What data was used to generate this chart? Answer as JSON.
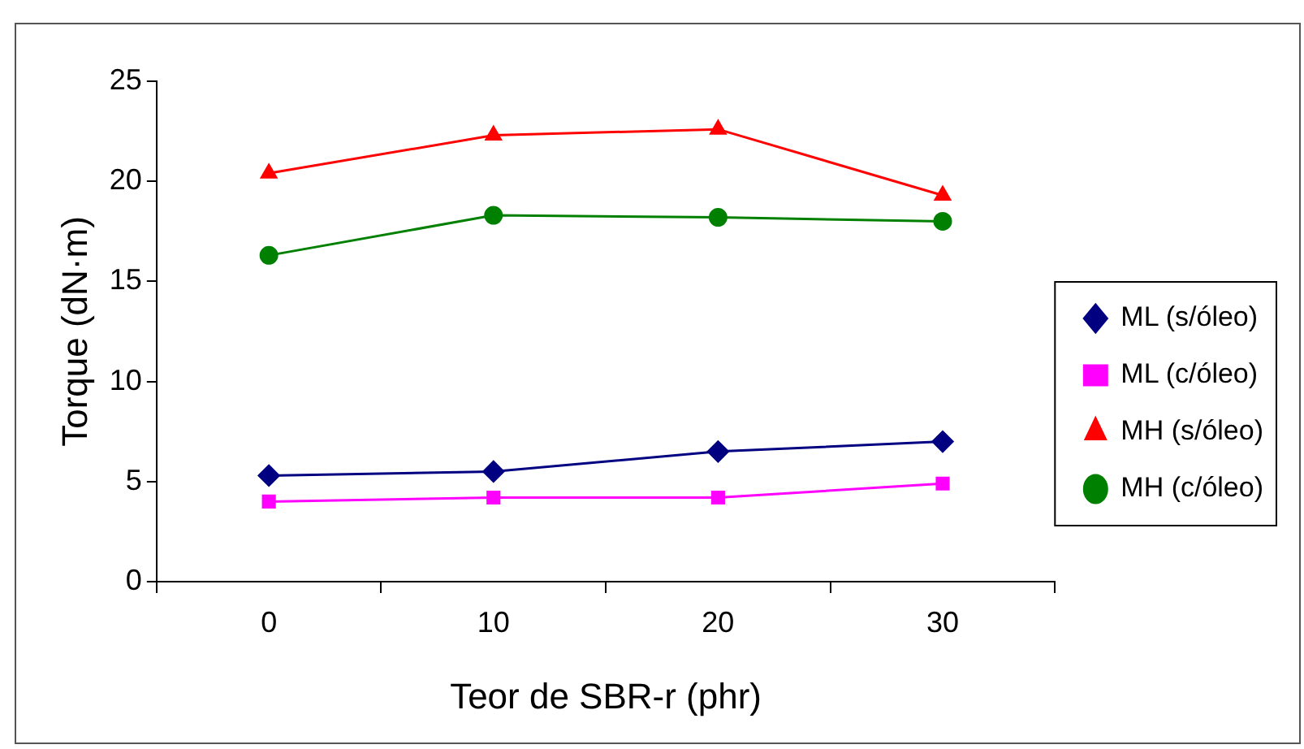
{
  "chart_data": {
    "type": "line",
    "xlabel": "Teor de SBR-r (phr)",
    "ylabel": "Torque (dN·m)",
    "categories": [
      "0",
      "10",
      "20",
      "30"
    ],
    "ylim": [
      0,
      25
    ],
    "yticks": [
      0,
      5,
      10,
      15,
      20,
      25
    ],
    "grid": false,
    "legend": "right",
    "series": [
      {
        "name": "ML (s/óleo)",
        "color": "#000080",
        "marker": "diamond",
        "values": [
          5.3,
          5.5,
          6.5,
          7.0
        ]
      },
      {
        "name": "ML (c/óleo)",
        "color": "#ff00ff",
        "marker": "square",
        "values": [
          4.0,
          4.2,
          4.2,
          4.9
        ]
      },
      {
        "name": "MH (s/óleo)",
        "color": "#ff0000",
        "marker": "triangle",
        "values": [
          20.4,
          22.3,
          22.6,
          19.3
        ]
      },
      {
        "name": "MH (c/óleo)",
        "color": "#008000",
        "marker": "circle",
        "values": [
          16.3,
          18.3,
          18.2,
          18.0
        ]
      }
    ]
  }
}
